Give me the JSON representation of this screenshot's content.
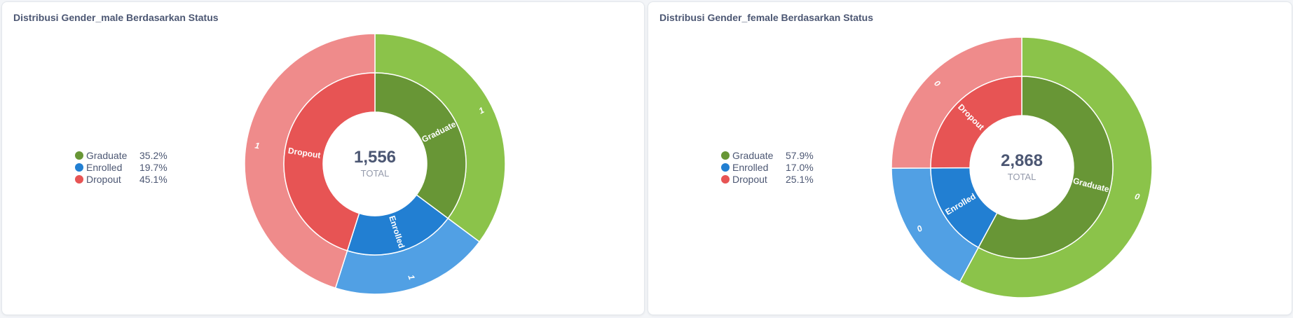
{
  "chart_data": [
    {
      "type": "pie",
      "title": "Distribusi Gender_male Berdasarkan Status",
      "total": 1556,
      "total_display": "1,556",
      "total_label": "TOTAL",
      "categories": [
        "Graduate",
        "Enrolled",
        "Dropout"
      ],
      "percentages": [
        "35.2%",
        "19.7%",
        "45.1%"
      ],
      "values": [
        0.352,
        0.197,
        0.451
      ],
      "outer_ring_labels": [
        "1",
        "1",
        "1"
      ],
      "colors": {
        "inner": [
          "#689636",
          "#227fd2",
          "#e75454"
        ],
        "outer": [
          "#8bc34a",
          "#51a0e4",
          "#ef8b8b"
        ]
      }
    },
    {
      "type": "pie",
      "title": "Distribusi Gender_female Berdasarkan Status",
      "total": 2868,
      "total_display": "2,868",
      "total_label": "TOTAL",
      "categories": [
        "Graduate",
        "Enrolled",
        "Dropout"
      ],
      "percentages": [
        "57.9%",
        "17.0%",
        "25.1%"
      ],
      "values": [
        0.579,
        0.17,
        0.251
      ],
      "outer_ring_labels": [
        "0",
        "0",
        "0"
      ],
      "colors": {
        "inner": [
          "#689636",
          "#227fd2",
          "#e75454"
        ],
        "outer": [
          "#8bc34a",
          "#51a0e4",
          "#ef8b8b"
        ]
      }
    }
  ]
}
